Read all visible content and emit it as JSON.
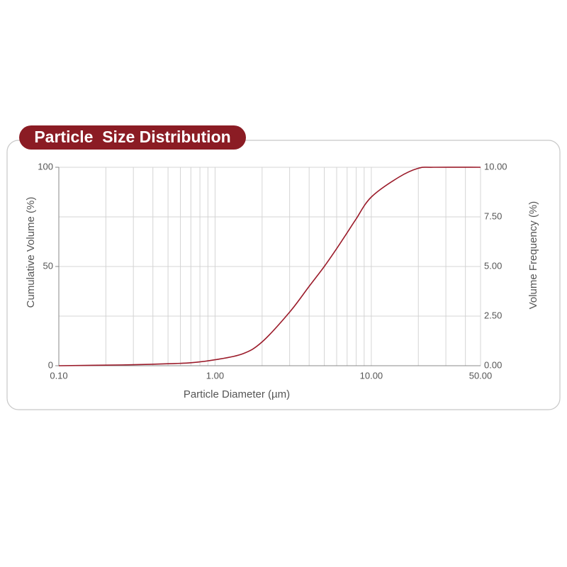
{
  "chart_data": {
    "type": "line",
    "title": "Particle  Size Distribution",
    "xlabel": "Particle Diameter (µm)",
    "ylabel": "Cumulative Volume (%)",
    "y2label": "Volume Frequency (%)",
    "x": [
      0.1,
      0.2,
      0.3,
      0.5,
      0.7,
      1,
      1.5,
      2,
      3,
      4,
      5,
      6,
      7,
      8,
      10,
      15,
      20,
      25,
      50
    ],
    "series": [
      {
        "color": "#9b1b2a",
        "values": [
          0,
          0.3,
          0.5,
          1,
          1.5,
          3,
          6,
          12,
          27,
          40,
          50,
          59,
          67,
          74,
          85,
          95,
          99.5,
          100,
          100
        ]
      }
    ],
    "xscale": "log",
    "xlim": [
      0.1,
      50
    ],
    "xticks": [
      {
        "value": 0.1,
        "label": "0.10"
      },
      {
        "value": 1,
        "label": "1.00"
      },
      {
        "value": 10,
        "label": "10.00"
      },
      {
        "value": 50,
        "label": "50.00"
      }
    ],
    "ylim": [
      0,
      100
    ],
    "yticks": [
      0,
      50,
      100
    ],
    "y2lim": [
      0,
      10
    ],
    "y2ticks": [
      {
        "value": 0,
        "label": "0.00"
      },
      {
        "value": 2.5,
        "label": "2.50"
      },
      {
        "value": 5,
        "label": "5.00"
      },
      {
        "value": 7.5,
        "label": "7.50"
      },
      {
        "value": 10,
        "label": "10.00"
      }
    ],
    "grid": true,
    "badge_color": "#8b1c24"
  }
}
